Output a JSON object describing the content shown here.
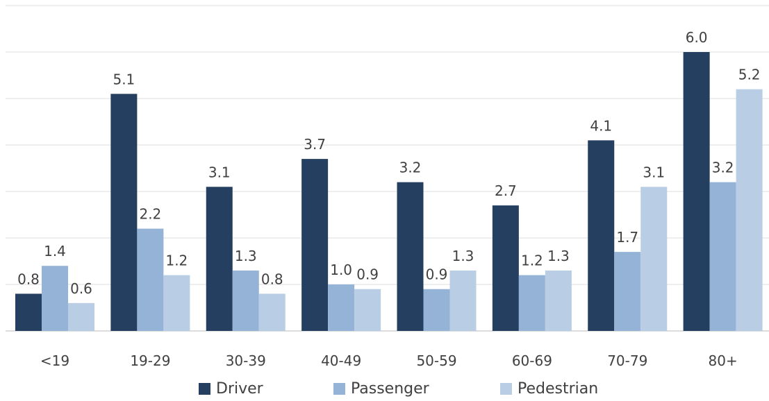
{
  "chart_data": {
    "type": "bar",
    "categories": [
      "<19",
      "19-29",
      "30-39",
      "40-49",
      "50-59",
      "60-69",
      "70-79",
      "80+"
    ],
    "series": [
      {
        "name": "Driver",
        "color": "#243f60",
        "values": [
          0.8,
          5.1,
          3.1,
          3.7,
          3.2,
          2.7,
          4.1,
          6.0
        ]
      },
      {
        "name": "Passenger",
        "color": "#95b3d7",
        "values": [
          1.4,
          2.2,
          1.3,
          1.0,
          0.9,
          1.2,
          1.7,
          3.2
        ]
      },
      {
        "name": "Pedestrian",
        "color": "#b9cde5",
        "values": [
          0.6,
          1.2,
          0.8,
          0.9,
          1.3,
          1.3,
          3.1,
          5.2
        ]
      }
    ],
    "ylim": [
      0,
      7
    ],
    "grid": true,
    "y_tick_labels_shown": false,
    "legend_position": "bottom"
  }
}
